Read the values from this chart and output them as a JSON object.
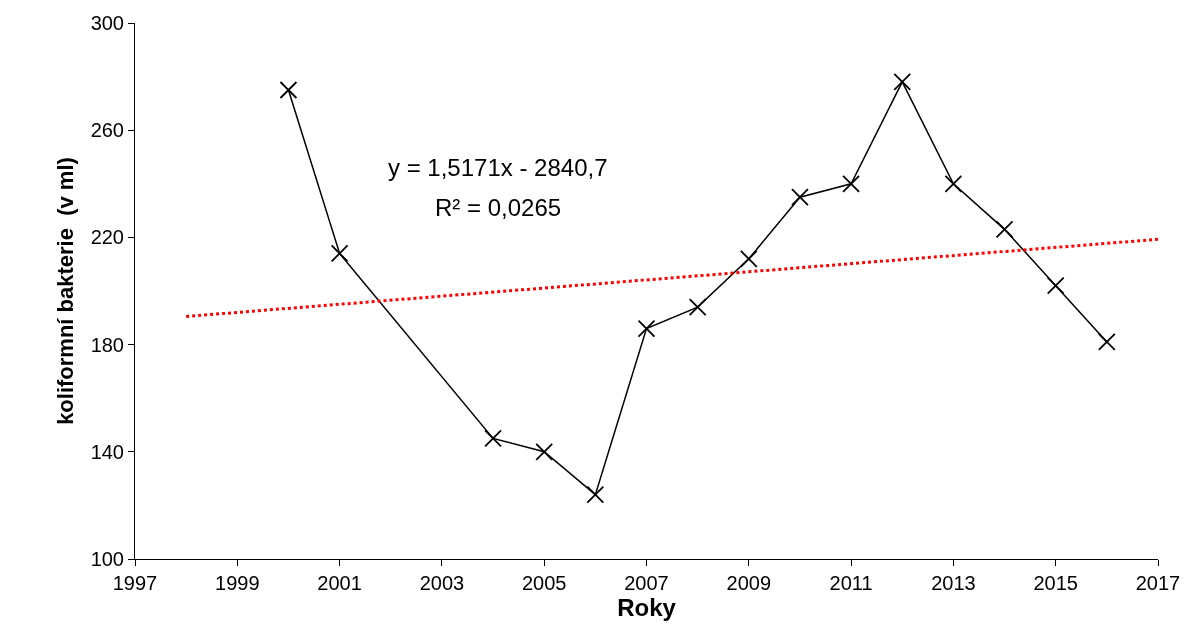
{
  "chart_data": {
    "type": "line",
    "xlabel": "Roky",
    "ylabel": "koliformní bakterie  (v ml)",
    "x": [
      2000,
      2001,
      2004,
      2005,
      2006,
      2007,
      2008,
      2009,
      2010,
      2011,
      2012,
      2013,
      2014,
      2015,
      2016
    ],
    "series": [
      {
        "color": "#000000",
        "marker": "cross",
        "line_style": "solid",
        "values": [
          275,
          214,
          145,
          140,
          124,
          186,
          194,
          212,
          235,
          240,
          278,
          240,
          223,
          202,
          181
        ]
      },
      {
        "type": "line",
        "x": [
          1998,
          2017
        ],
        "color": "#ff0000",
        "marker": "none",
        "line_style": "dotted",
        "values": [
          190.5,
          219.3
        ]
      }
    ],
    "annotations": [
      "y = 1,5171x - 2840,7",
      "R² = 0,0265"
    ],
    "xlim": [
      1997,
      2017
    ],
    "xticks": [
      1997,
      1999,
      2001,
      2003,
      2005,
      2007,
      2009,
      2011,
      2013,
      2015,
      2017
    ],
    "ylim": [
      100,
      300
    ],
    "yticks": [
      100,
      140,
      180,
      220,
      260,
      300
    ]
  }
}
